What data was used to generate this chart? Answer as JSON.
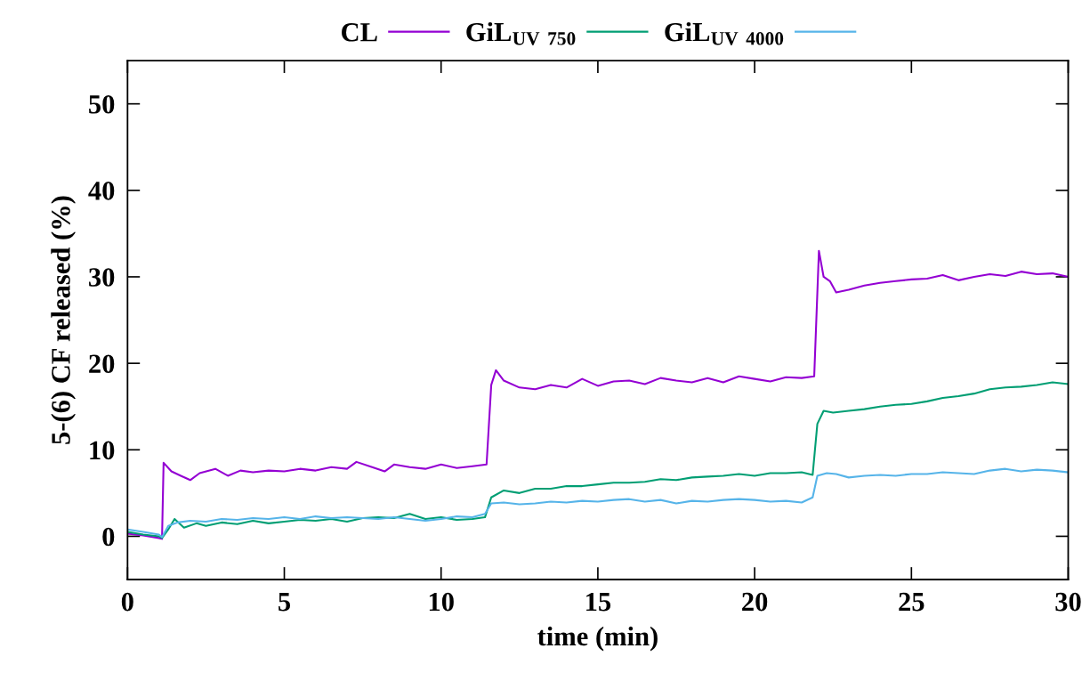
{
  "chart_data": {
    "type": "line",
    "xlabel": "time (min)",
    "ylabel": "5-(6) CF released (%)",
    "xlim": [
      0,
      30
    ],
    "ylim": [
      -5,
      55
    ],
    "xticks": [
      0,
      5,
      10,
      15,
      20,
      25,
      30
    ],
    "yticks": [
      0,
      10,
      20,
      30,
      40,
      50
    ],
    "grid": false,
    "legend": "top",
    "marker": "none",
    "line_style": "solid",
    "series": [
      {
        "name": "CL",
        "color": "#9400d3",
        "x": [
          0,
          0.5,
          1.0,
          1.1,
          1.15,
          1.4,
          1.7,
          2.0,
          2.3,
          2.8,
          3.2,
          3.6,
          4.0,
          4.5,
          5.0,
          5.5,
          6.0,
          6.5,
          7.0,
          7.3,
          7.8,
          8.2,
          8.5,
          9.0,
          9.5,
          10.0,
          10.5,
          11.0,
          11.45,
          11.6,
          11.75,
          12.0,
          12.5,
          13.0,
          13.5,
          14.0,
          14.5,
          15.0,
          15.5,
          16.0,
          16.5,
          17.0,
          17.5,
          18.0,
          18.5,
          19.0,
          19.5,
          20.0,
          20.5,
          21.0,
          21.5,
          21.9,
          22.05,
          22.2,
          22.4,
          22.6,
          23.0,
          23.5,
          24.0,
          24.5,
          25.0,
          25.5,
          26.0,
          26.5,
          27.0,
          27.5,
          28.0,
          28.5,
          29.0,
          29.5,
          30.0
        ],
        "values": [
          0.3,
          0.1,
          -0.2,
          -0.3,
          8.5,
          7.5,
          7.0,
          6.5,
          7.3,
          7.8,
          7.0,
          7.6,
          7.4,
          7.6,
          7.5,
          7.8,
          7.6,
          8.0,
          7.8,
          8.6,
          8.0,
          7.5,
          8.3,
          8.0,
          7.8,
          8.3,
          7.9,
          8.1,
          8.3,
          17.5,
          19.2,
          18.0,
          17.2,
          17.0,
          17.5,
          17.2,
          18.2,
          17.4,
          17.9,
          18.0,
          17.6,
          18.3,
          18.0,
          17.8,
          18.3,
          17.8,
          18.5,
          18.2,
          17.9,
          18.4,
          18.3,
          18.5,
          33.0,
          30.0,
          29.5,
          28.2,
          28.5,
          29.0,
          29.3,
          29.5,
          29.7,
          29.8,
          30.2,
          29.6,
          30.0,
          30.3,
          30.1,
          30.6,
          30.3,
          30.4,
          30.0
        ]
      },
      {
        "name": "GiL$_{UV}$ $_{750}$",
        "color": "#009e73",
        "x": [
          0,
          0.5,
          1.0,
          1.1,
          1.3,
          1.5,
          1.8,
          2.2,
          2.5,
          3.0,
          3.5,
          4.0,
          4.5,
          5.0,
          5.5,
          6.0,
          6.5,
          7.0,
          7.5,
          8.0,
          8.5,
          9.0,
          9.5,
          10.0,
          10.5,
          11.0,
          11.4,
          11.6,
          12.0,
          12.5,
          13.0,
          13.5,
          14.0,
          14.5,
          15.0,
          15.5,
          16.0,
          16.5,
          17.0,
          17.5,
          18.0,
          18.5,
          19.0,
          19.5,
          20.0,
          20.5,
          21.0,
          21.5,
          21.85,
          22.0,
          22.2,
          22.5,
          23.0,
          23.5,
          24.0,
          24.5,
          25.0,
          25.5,
          26.0,
          26.5,
          27.0,
          27.5,
          28.0,
          28.5,
          29.0,
          29.5,
          30.0
        ],
        "values": [
          0.5,
          0.2,
          0,
          -0.2,
          0.8,
          2.0,
          1.0,
          1.5,
          1.2,
          1.6,
          1.4,
          1.8,
          1.5,
          1.7,
          1.9,
          1.8,
          2.0,
          1.7,
          2.1,
          2.2,
          2.1,
          2.6,
          2.0,
          2.2,
          1.9,
          2.0,
          2.2,
          4.5,
          5.3,
          5.0,
          5.5,
          5.5,
          5.8,
          5.8,
          6.0,
          6.2,
          6.2,
          6.3,
          6.6,
          6.5,
          6.8,
          6.9,
          7.0,
          7.2,
          7.0,
          7.3,
          7.3,
          7.4,
          7.1,
          13.0,
          14.5,
          14.3,
          14.5,
          14.7,
          15.0,
          15.2,
          15.3,
          15.6,
          16.0,
          16.2,
          16.5,
          17.0,
          17.2,
          17.3,
          17.5,
          17.8,
          17.6
        ]
      },
      {
        "name": "GiL$_{UV}$ $_{4000}$",
        "color": "#56b4e9",
        "x": [
          0,
          0.5,
          1.0,
          1.1,
          1.3,
          1.6,
          2.0,
          2.5,
          3.0,
          3.5,
          4.0,
          4.5,
          5.0,
          5.5,
          6.0,
          6.5,
          7.0,
          7.5,
          8.0,
          8.5,
          9.0,
          9.5,
          10.0,
          10.5,
          11.0,
          11.4,
          11.6,
          12.0,
          12.5,
          13.0,
          13.5,
          14.0,
          14.5,
          15.0,
          15.5,
          16.0,
          16.5,
          17.0,
          17.5,
          18.0,
          18.5,
          19.0,
          19.5,
          20.0,
          20.5,
          21.0,
          21.5,
          21.85,
          22.0,
          22.3,
          22.6,
          23.0,
          23.5,
          24.0,
          24.5,
          25.0,
          25.5,
          26.0,
          26.5,
          27.0,
          27.5,
          28.0,
          28.5,
          29.0,
          29.5,
          30.0
        ],
        "values": [
          0.8,
          0.5,
          0.2,
          -0.1,
          1.2,
          1.6,
          1.8,
          1.7,
          2.0,
          1.9,
          2.1,
          2.0,
          2.2,
          2.0,
          2.3,
          2.1,
          2.2,
          2.1,
          2.0,
          2.2,
          2.0,
          1.8,
          2.0,
          2.3,
          2.2,
          2.6,
          3.8,
          3.9,
          3.7,
          3.8,
          4.0,
          3.9,
          4.1,
          4.0,
          4.2,
          4.3,
          4.0,
          4.2,
          3.8,
          4.1,
          4.0,
          4.2,
          4.3,
          4.2,
          4.0,
          4.1,
          3.9,
          4.5,
          7.0,
          7.3,
          7.2,
          6.8,
          7.0,
          7.1,
          7.0,
          7.2,
          7.2,
          7.4,
          7.3,
          7.2,
          7.6,
          7.8,
          7.5,
          7.7,
          7.6,
          7.4
        ]
      }
    ]
  }
}
